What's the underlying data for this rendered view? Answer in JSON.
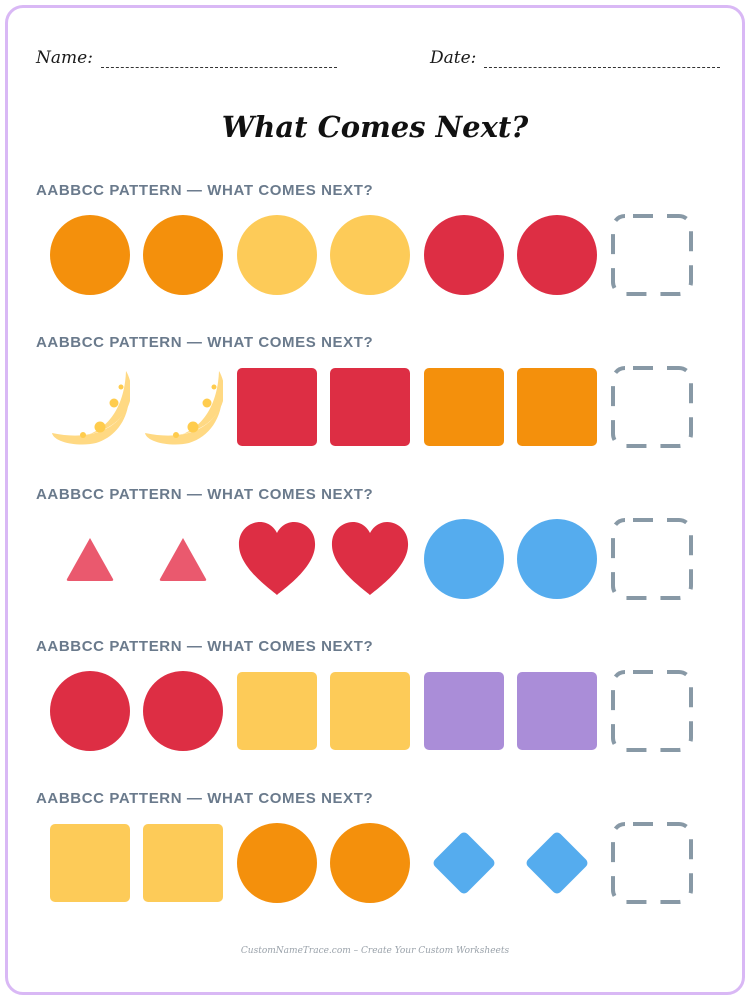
{
  "header": {
    "name_label": "Name:",
    "date_label": "Date:"
  },
  "title": "What Comes Next?",
  "colors": {
    "orange": "#f4900c",
    "yellow": "#fdcb58",
    "red": "#dd2e44",
    "pink": "#ea596e",
    "blue": "#55acee",
    "purple": "#aa8dd8",
    "moon": "#ffd983",
    "moon_spot": "#ffcc4d",
    "placeholder": "#8899a6",
    "border": "#d9b8f5"
  },
  "rows": [
    {
      "label": "AABBCC PATTERN — WHAT COMES NEXT?",
      "items": [
        {
          "shape": "circle",
          "color": "orange"
        },
        {
          "shape": "circle",
          "color": "orange"
        },
        {
          "shape": "circle",
          "color": "yellow"
        },
        {
          "shape": "circle",
          "color": "yellow"
        },
        {
          "shape": "circle",
          "color": "red"
        },
        {
          "shape": "circle",
          "color": "red"
        },
        {
          "shape": "placeholder"
        }
      ]
    },
    {
      "label": "AABBCC PATTERN — WHAT COMES NEXT?",
      "items": [
        {
          "shape": "moon",
          "color": "moon"
        },
        {
          "shape": "moon",
          "color": "moon"
        },
        {
          "shape": "square",
          "color": "red"
        },
        {
          "shape": "square",
          "color": "red"
        },
        {
          "shape": "square",
          "color": "orange"
        },
        {
          "shape": "square",
          "color": "orange"
        },
        {
          "shape": "placeholder"
        }
      ]
    },
    {
      "label": "AABBCC PATTERN — WHAT COMES NEXT?",
      "items": [
        {
          "shape": "triangle",
          "color": "pink"
        },
        {
          "shape": "triangle",
          "color": "pink"
        },
        {
          "shape": "heart",
          "color": "red"
        },
        {
          "shape": "heart",
          "color": "red"
        },
        {
          "shape": "circle",
          "color": "blue"
        },
        {
          "shape": "circle",
          "color": "blue"
        },
        {
          "shape": "placeholder"
        }
      ]
    },
    {
      "label": "AABBCC PATTERN — WHAT COMES NEXT?",
      "items": [
        {
          "shape": "circle",
          "color": "red"
        },
        {
          "shape": "circle",
          "color": "red"
        },
        {
          "shape": "square",
          "color": "yellow"
        },
        {
          "shape": "square",
          "color": "yellow"
        },
        {
          "shape": "square",
          "color": "purple"
        },
        {
          "shape": "square",
          "color": "purple"
        },
        {
          "shape": "placeholder"
        }
      ]
    },
    {
      "label": "AABBCC PATTERN — WHAT COMES NEXT?",
      "items": [
        {
          "shape": "square",
          "color": "yellow"
        },
        {
          "shape": "square",
          "color": "yellow"
        },
        {
          "shape": "circle",
          "color": "orange"
        },
        {
          "shape": "circle",
          "color": "orange"
        },
        {
          "shape": "diamond",
          "color": "blue"
        },
        {
          "shape": "diamond",
          "color": "blue"
        },
        {
          "shape": "placeholder"
        }
      ]
    }
  ],
  "footer": "CustomNameTrace.com – Create Your Custom Worksheets"
}
